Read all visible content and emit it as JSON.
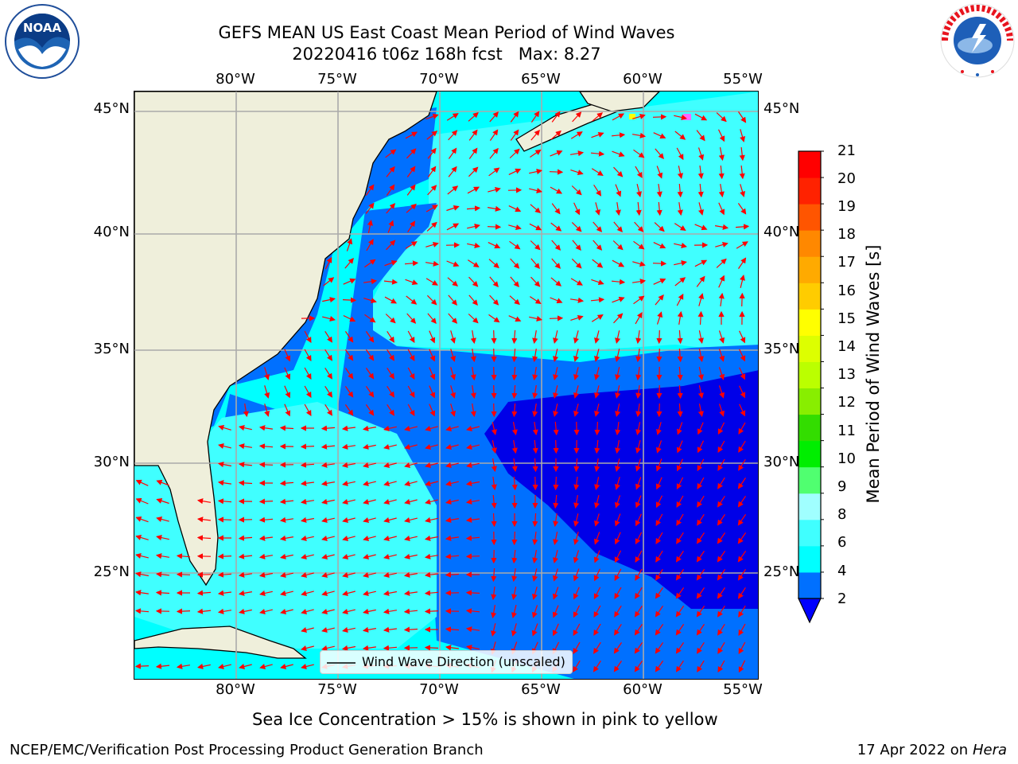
{
  "header": {
    "title_line1": "GEFS MEAN US East Coast Mean Period of Wind Waves",
    "title_line2": "20220416 t06z 168h fcst   Max: 8.27"
  },
  "logos": {
    "left": "NOAA",
    "right": "NATIONAL WEATHER SERVICE"
  },
  "map": {
    "lon_labels": [
      "80°W",
      "75°W",
      "70°W",
      "65°W",
      "60°W",
      "55°W"
    ],
    "lat_labels": [
      "45°N",
      "40°N",
      "35°N",
      "30°N",
      "25°N"
    ],
    "lon_range": [
      -85,
      -55
    ],
    "lat_range": [
      20.5,
      46
    ],
    "legend_label": "Wind Wave Direction (unscaled)",
    "arrow_color": "#ff0000",
    "land_color": "#efefdb"
  },
  "colorbar": {
    "label": "Mean Period of Wind Waves [s]",
    "ticks": [
      "2",
      "4",
      "6",
      "8",
      "9",
      "10",
      "11",
      "12",
      "13",
      "14",
      "15",
      "16",
      "17",
      "18",
      "19",
      "20",
      "21"
    ],
    "colors": [
      "#0000ff",
      "#0070ff",
      "#00ffff",
      "#40ffff",
      "#a0ffff",
      "#50ff70",
      "#00ee00",
      "#33dd00",
      "#88ee00",
      "#bbff00",
      "#ddff00",
      "#ffff00",
      "#ffcc00",
      "#ffaa00",
      "#ff8800",
      "#ff5500",
      "#ff2200",
      "#ff0000"
    ]
  },
  "caption": "Sea Ice Concentration > 15% is shown in pink to yellow",
  "footer": {
    "left": "NCEP/EMC/Verification Post Processing Product Generation Branch",
    "right_prefix": "17 Apr 2022 on ",
    "right_machine": "Hera"
  }
}
